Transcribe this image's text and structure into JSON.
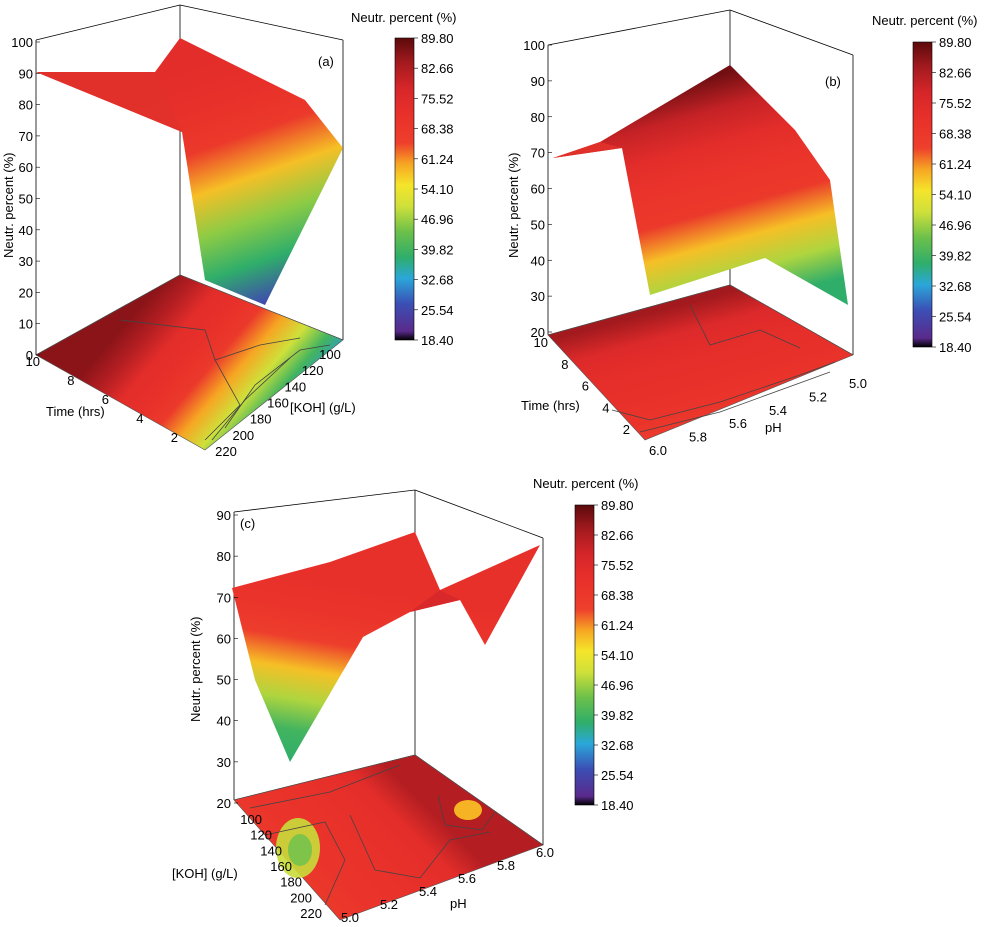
{
  "figure": {
    "colorbar": {
      "title": "Neutr. percent (%)",
      "ticks": [
        "89.80",
        "82.66",
        "75.52",
        "68.38",
        "61.24",
        "54.10",
        "46.96",
        "39.82",
        "32.68",
        "25.54",
        "18.40"
      ],
      "stops": [
        {
          "v": 18.4,
          "color": "#000000"
        },
        {
          "v": 20.5,
          "color": "#5a2a8c"
        },
        {
          "v": 27.0,
          "color": "#3b4fb5"
        },
        {
          "v": 33.0,
          "color": "#2aa7d9"
        },
        {
          "v": 38.0,
          "color": "#2fae6a"
        },
        {
          "v": 44.0,
          "color": "#6cc04a"
        },
        {
          "v": 50.0,
          "color": "#cfe03a"
        },
        {
          "v": 55.0,
          "color": "#f5e52a"
        },
        {
          "v": 60.0,
          "color": "#f6a623"
        },
        {
          "v": 65.0,
          "color": "#ee3f2c"
        },
        {
          "v": 72.0,
          "color": "#e8302a"
        },
        {
          "v": 78.0,
          "color": "#d6262a"
        },
        {
          "v": 84.0,
          "color": "#a31a1e"
        },
        {
          "v": 89.8,
          "color": "#5c0a0c"
        }
      ]
    }
  },
  "chart_data": [
    {
      "type": "surface3d",
      "panel_label": "(a)",
      "title": "",
      "xlabel": "Time (hrs)",
      "ylabel": "[KOH] (g/L)",
      "zlabel": "Neutr. percent (%)",
      "x_ticks": [
        "10",
        "8",
        "6",
        "4",
        "2"
      ],
      "y_ticks": [
        "100",
        "120",
        "140",
        "160",
        "180",
        "200",
        "220"
      ],
      "z_ticks": [
        "0",
        "10",
        "20",
        "30",
        "40",
        "50",
        "60",
        "70",
        "80",
        "90",
        "100"
      ],
      "zlim": [
        0,
        100
      ],
      "x": [
        10,
        2
      ],
      "y": [
        100,
        220
      ],
      "z": [
        [
          90,
          72
        ],
        [
          88,
          26
        ]
      ]
    },
    {
      "type": "surface3d",
      "panel_label": "(b)",
      "title": "",
      "xlabel": "Time (hrs)",
      "ylabel": "pH",
      "zlabel": "Neutr. percent (%)",
      "x_ticks": [
        "10",
        "8",
        "6",
        "4",
        "2"
      ],
      "y_ticks": [
        "5.0",
        "5.2",
        "5.4",
        "5.6",
        "5.8",
        "6.0"
      ],
      "z_ticks": [
        "20",
        "30",
        "40",
        "50",
        "60",
        "70",
        "80",
        "90",
        "100"
      ],
      "zlim": [
        20,
        100
      ],
      "x": [
        10,
        2
      ],
      "y": [
        6.0,
        5.0
      ],
      "z": [
        [
          70,
          88
        ],
        [
          30,
          38
        ]
      ]
    },
    {
      "type": "surface3d",
      "panel_label": "(c)",
      "title": "",
      "xlabel": "[KOH] (g/L)",
      "ylabel": "pH",
      "zlabel": "Neutr. percent (%)",
      "x_ticks": [
        "100",
        "120",
        "140",
        "160",
        "180",
        "200",
        "220"
      ],
      "y_ticks": [
        "5.0",
        "5.2",
        "5.4",
        "5.6",
        "5.8",
        "6.0"
      ],
      "z_ticks": [
        "20",
        "30",
        "40",
        "50",
        "60",
        "70",
        "80",
        "90"
      ],
      "zlim": [
        20,
        90
      ],
      "x": [
        100,
        220
      ],
      "y": [
        5.0,
        6.0
      ],
      "z": [
        [
          72,
          86
        ],
        [
          30,
          58
        ]
      ]
    }
  ]
}
